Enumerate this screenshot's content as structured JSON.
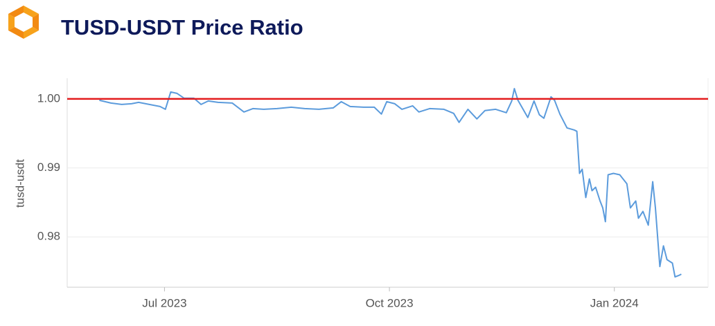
{
  "chart_data": {
    "type": "line",
    "title": "TUSD-USDT Price Ratio",
    "y_label": "tusd-usdt",
    "x": [
      2023.423,
      2023.436,
      2023.448,
      2023.459,
      2023.467,
      2023.479,
      2023.491,
      2023.497,
      2023.503,
      2023.51,
      2023.518,
      2023.529,
      2023.537,
      2023.545,
      2023.556,
      2023.572,
      2023.585,
      2023.595,
      2023.607,
      2023.622,
      2023.638,
      2023.653,
      2023.669,
      2023.685,
      2023.694,
      2023.704,
      2023.719,
      2023.731,
      2023.739,
      2023.745,
      2023.754,
      2023.762,
      2023.774,
      2023.781,
      2023.793,
      2023.809,
      2023.82,
      2023.826,
      2023.836,
      2023.846,
      2023.855,
      2023.867,
      2023.879,
      2023.885,
      2023.888,
      2023.892,
      2023.903,
      2023.91,
      2023.916,
      2023.921,
      2023.929,
      2023.933,
      2023.939,
      2023.947,
      2023.955,
      2023.958,
      2023.961,
      2023.964,
      2023.968,
      2023.972,
      2023.975,
      2023.979,
      2023.984,
      2023.987,
      2023.99,
      2023.993,
      2023.999,
      2024.006,
      2024.014,
      2024.018,
      2024.024,
      2024.027,
      2024.032,
      2024.038,
      2024.043,
      2024.046,
      2024.051,
      2024.055,
      2024.059,
      2024.065,
      2024.068,
      2024.072,
      2024.075
    ],
    "series": [
      {
        "color": "#5b9bdc",
        "values": [
          0.9998,
          0.9994,
          0.9992,
          0.9993,
          0.9995,
          0.9992,
          0.9989,
          0.9985,
          1.001,
          1.0008,
          1.0001,
          1.0001,
          0.9992,
          0.9997,
          0.9995,
          0.9994,
          0.9981,
          0.9986,
          0.9985,
          0.9986,
          0.9988,
          0.9986,
          0.9985,
          0.9987,
          0.9996,
          0.9989,
          0.9988,
          0.9988,
          0.9978,
          0.9996,
          0.9993,
          0.9985,
          0.999,
          0.9981,
          0.9986,
          0.9985,
          0.9979,
          0.9966,
          0.9985,
          0.9971,
          0.9983,
          0.9985,
          0.998,
          0.9997,
          1.0015,
          0.9998,
          0.9973,
          0.9997,
          0.9977,
          0.9972,
          1.0003,
          0.9998,
          0.9978,
          0.9958,
          0.9955,
          0.9953,
          0.9892,
          0.9898,
          0.9857,
          0.9884,
          0.9867,
          0.9872,
          0.9852,
          0.9842,
          0.9822,
          0.989,
          0.9892,
          0.989,
          0.9877,
          0.9842,
          0.9852,
          0.9827,
          0.9837,
          0.9817,
          0.988,
          0.9842,
          0.9757,
          0.9787,
          0.9767,
          0.9762,
          0.9742,
          0.9744,
          0.9746
        ]
      }
    ],
    "reference_line": {
      "value": 1,
      "color": "#e31a1c"
    },
    "xlim": [
      2023.387,
      2024.105
    ],
    "xticks": [
      {
        "value": 2023.496,
        "label": "Jul 2023"
      },
      {
        "value": 2023.748,
        "label": "Oct 2023"
      },
      {
        "value": 2024,
        "label": "Jan 2024"
      }
    ],
    "ylim": [
      0.9727,
      1.003
    ],
    "yticks": [
      {
        "value": 1,
        "label": "1.00"
      },
      0.99,
      0.98
    ],
    "grid": true
  }
}
